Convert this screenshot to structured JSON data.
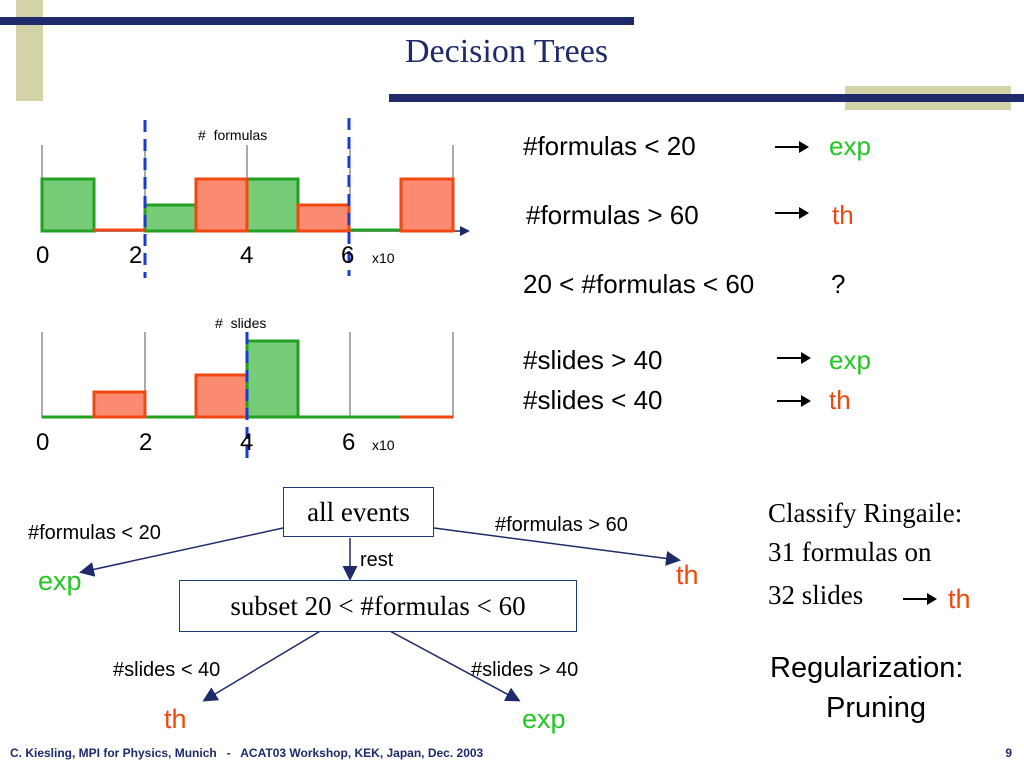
{
  "title": "Decision Trees",
  "histogram_top": {
    "label": "#  formulas",
    "ticks": [
      "0",
      "2",
      "4",
      "6"
    ],
    "unit": "x10"
  },
  "histogram_bottom": {
    "label": "#  slides",
    "ticks": [
      "0",
      "2",
      "4",
      "6"
    ],
    "unit": "x10"
  },
  "rules": [
    {
      "condition": "#formulas < 20",
      "result": "exp",
      "color": "#22c722"
    },
    {
      "condition": "#formulas > 60",
      "result": "th",
      "color": "#f04810"
    },
    {
      "condition": "20 < #formulas < 60",
      "result": "?"
    },
    {
      "condition": "#slides > 40",
      "result": "exp",
      "color": "#22c722"
    },
    {
      "condition": "#slides < 40",
      "result": "th",
      "color": "#f04810"
    }
  ],
  "tree": {
    "root": "all events",
    "left_edge": "#formulas < 20",
    "left_leaf": "exp",
    "right_edge": "#formulas > 60",
    "right_leaf": "th",
    "middle_edge": "rest",
    "subset": "subset 20 < #formulas < 60",
    "sub_left_edge": "#slides < 40",
    "sub_left_leaf": "th",
    "sub_right_edge": "#slides > 40",
    "sub_right_leaf": "exp"
  },
  "classify": {
    "line1": "Classify Ringaile:",
    "line2": "31 formulas on",
    "line3": "32 slides",
    "result": "th"
  },
  "regularization": {
    "line1": "Regularization:",
    "line2": "Pruning"
  },
  "footer": "C. Kiesling, MPI for Physics, Munich   -   ACAT03 Workshop, KEK, Japan, Dec. 2003",
  "page_number": "9",
  "colors": {
    "navy": "#1f2a6a",
    "khaki": "#d4d3a8",
    "green_fill": "#77cc77",
    "green_line": "#22a022",
    "red_fill": "#fa8a70",
    "red_line": "#f04810",
    "cut_line": "#1a3ad0"
  }
}
